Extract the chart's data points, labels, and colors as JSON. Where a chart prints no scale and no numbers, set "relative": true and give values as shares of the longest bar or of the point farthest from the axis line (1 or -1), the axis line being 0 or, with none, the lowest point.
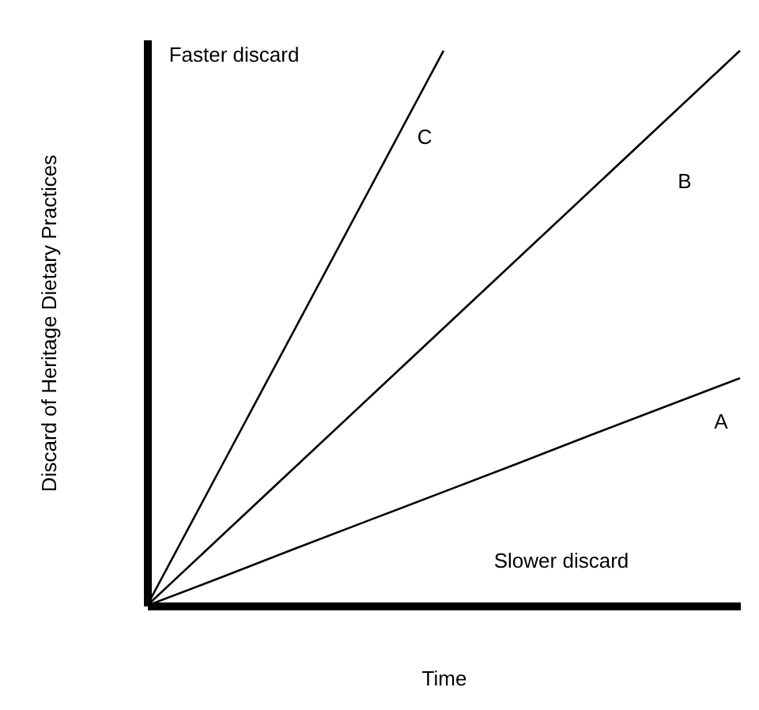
{
  "chart_data": {
    "type": "line",
    "relative": true,
    "xlabel": "Time",
    "ylabel": "Discard of Heritage Dietary Practices",
    "grid": false,
    "legend": false,
    "marker": "none",
    "line_style": "solid",
    "categories": [
      null,
      null,
      null,
      null,
      null,
      null,
      null,
      null,
      null
    ],
    "series": [
      {
        "name": "A",
        "color": "#000000",
        "values": [
          0,
          0.051,
          0.103,
          0.154,
          0.205,
          0.256,
          0.308,
          0.359,
          0.41
        ]
      },
      {
        "name": "B",
        "color": "#000000",
        "values": [
          0,
          0.125,
          0.25,
          0.375,
          0.5,
          0.625,
          0.75,
          0.875,
          1
        ]
      },
      {
        "name": "C",
        "color": "#000000",
        "values": [
          0,
          0.25,
          0.5,
          0.75,
          1,
          null,
          null,
          null,
          null
        ]
      }
    ],
    "annotations": [
      "Faster discard",
      "Slower discard"
    ]
  }
}
